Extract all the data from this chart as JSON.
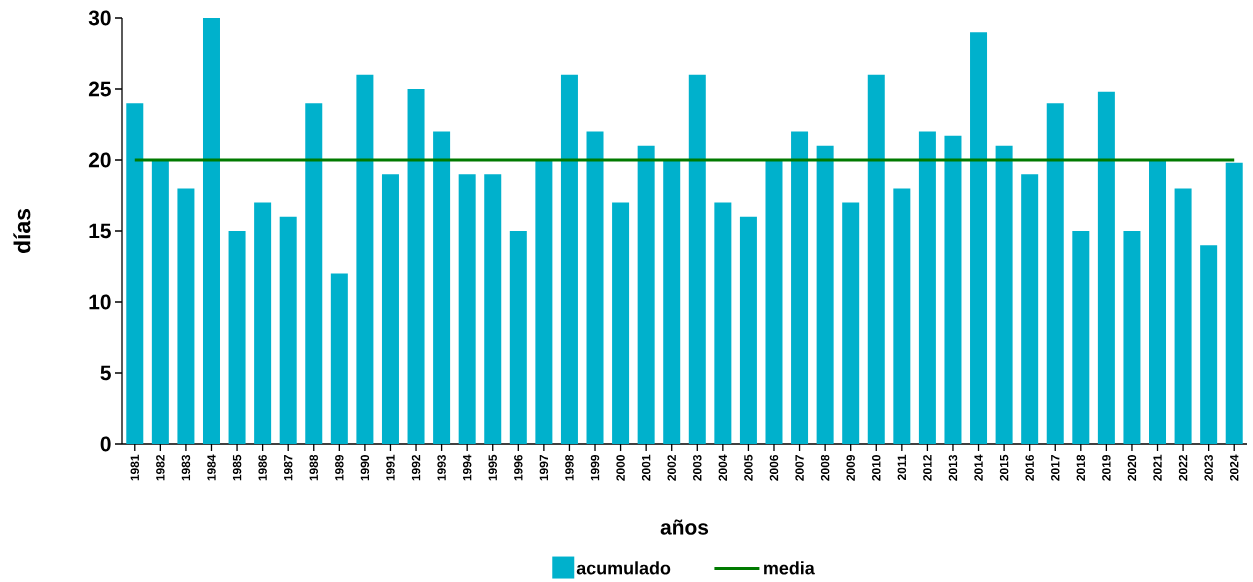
{
  "chart_data": {
    "type": "bar",
    "xlabel": "años",
    "ylabel": "días",
    "categories": [
      "1981",
      "1982",
      "1983",
      "1984",
      "1985",
      "1986",
      "1987",
      "1988",
      "1989",
      "1990",
      "1991",
      "1992",
      "1993",
      "1994",
      "1995",
      "1996",
      "1997",
      "1998",
      "1999",
      "2000",
      "2001",
      "2002",
      "2003",
      "2004",
      "2005",
      "2006",
      "2007",
      "2008",
      "2009",
      "2010",
      "2011",
      "2012",
      "2013",
      "2014",
      "2015",
      "2016",
      "2017",
      "2018",
      "2019",
      "2020",
      "2021",
      "2022",
      "2023",
      "2024"
    ],
    "series": [
      {
        "name": "acumulado",
        "color": "#00b1cc",
        "values": [
          24,
          20,
          18,
          30,
          15,
          17,
          16,
          24,
          12,
          26,
          19,
          25,
          22,
          19,
          19,
          15,
          20,
          26,
          22,
          17,
          21,
          20,
          26,
          17,
          16,
          20,
          22,
          21,
          17,
          26,
          18,
          22,
          21.7,
          29,
          21,
          19,
          24,
          15,
          24.8,
          15,
          20,
          18,
          14,
          19.8
        ]
      },
      {
        "name": "media",
        "type": "line",
        "color": "#007a00",
        "values": [
          20,
          20,
          20,
          20,
          20,
          20,
          20,
          20,
          20,
          20,
          20,
          20,
          20,
          20,
          20,
          20,
          20,
          20,
          20,
          20,
          20,
          20,
          20,
          20,
          20,
          20,
          20,
          20,
          20,
          20,
          20,
          20,
          20,
          20,
          20,
          20,
          20,
          20,
          20,
          20,
          20,
          20,
          20,
          20
        ]
      }
    ],
    "ylim": [
      0,
      30
    ],
    "yticks": [
      0,
      5,
      10,
      15,
      20,
      25,
      30
    ],
    "legend": "bottom"
  }
}
